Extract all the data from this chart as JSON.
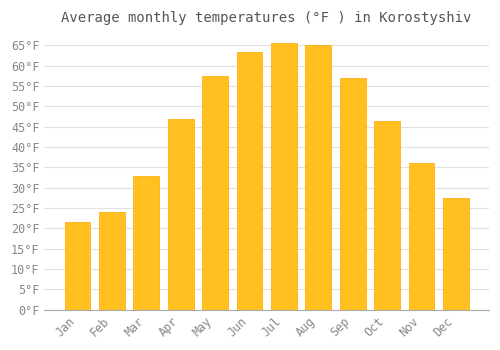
{
  "title": "Average monthly temperatures (°F ) in Korostyshiv",
  "months": [
    "Jan",
    "Feb",
    "Mar",
    "Apr",
    "May",
    "Jun",
    "Jul",
    "Aug",
    "Sep",
    "Oct",
    "Nov",
    "Dec"
  ],
  "values": [
    21.5,
    24.0,
    33.0,
    47.0,
    57.5,
    63.5,
    65.5,
    65.0,
    57.0,
    46.5,
    36.0,
    27.5
  ],
  "bar_color": "#FFC020",
  "bar_edge_color": "#FFA500",
  "background_color": "#FFFFFF",
  "grid_color": "#E0E0E0",
  "text_color": "#888888",
  "title_color": "#555555",
  "ylim": [
    0,
    68
  ],
  "yticks": [
    0,
    5,
    10,
    15,
    20,
    25,
    30,
    35,
    40,
    45,
    50,
    55,
    60,
    65
  ],
  "title_fontsize": 10,
  "tick_fontsize": 8.5
}
